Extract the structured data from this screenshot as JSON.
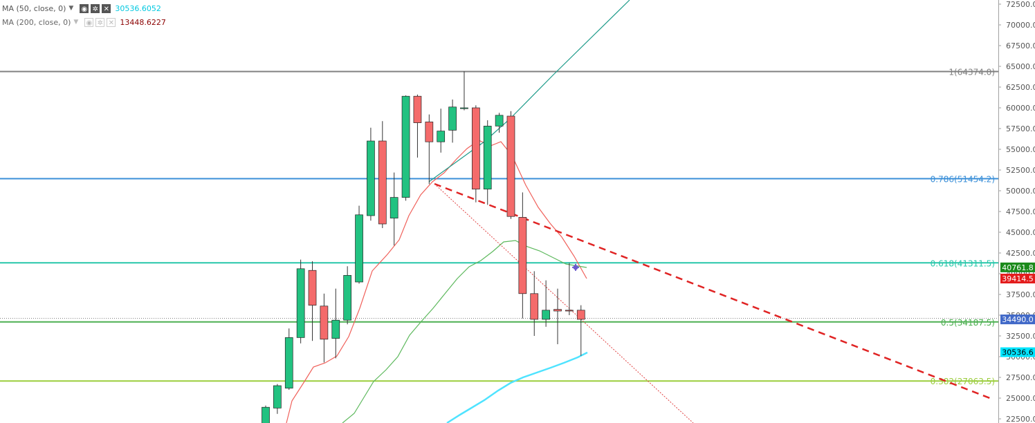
{
  "legend": {
    "ma50": {
      "label": "MA (50, close, 0)",
      "value": "30536.6052",
      "value_color": "#00c8e0"
    },
    "ma200": {
      "label": "MA (200, close, 0)",
      "value": "13448.6227",
      "value_color": "#8b0000"
    },
    "icons": [
      "eye-icon",
      "gear-icon",
      "close-icon",
      "chevron-down-icon"
    ]
  },
  "chart_data": {
    "type": "candlestick",
    "ylim": [
      22000,
      73500
    ],
    "y_ticks": [
      "22500.0",
      "25000.0",
      "27500.0",
      "30000.0",
      "32500.0",
      "35000.0",
      "37500.0",
      "40000.0",
      "42500.0",
      "45000.0",
      "47500.0",
      "50000.0",
      "52500.0",
      "55000.0",
      "57500.0",
      "60000.0",
      "62500.0",
      "65000.0",
      "67500.0",
      "70000.0",
      "72500.0"
    ],
    "candles": [
      {
        "o": 21600,
        "h": 24100,
        "l": 21000,
        "c": 23900
      },
      {
        "o": 23800,
        "h": 26700,
        "l": 23100,
        "c": 26500
      },
      {
        "o": 26200,
        "h": 33400,
        "l": 26000,
        "c": 32300
      },
      {
        "o": 32300,
        "h": 41700,
        "l": 31600,
        "c": 40600
      },
      {
        "o": 40400,
        "h": 41500,
        "l": 31900,
        "c": 36200
      },
      {
        "o": 36100,
        "h": 37600,
        "l": 29300,
        "c": 32100
      },
      {
        "o": 32200,
        "h": 38200,
        "l": 29800,
        "c": 34400
      },
      {
        "o": 34400,
        "h": 40900,
        "l": 33900,
        "c": 39800
      },
      {
        "o": 39000,
        "h": 48200,
        "l": 38800,
        "c": 47100
      },
      {
        "o": 47000,
        "h": 57600,
        "l": 46400,
        "c": 56000
      },
      {
        "o": 56000,
        "h": 58400,
        "l": 45500,
        "c": 46000
      },
      {
        "o": 46700,
        "h": 52200,
        "l": 43400,
        "c": 49200
      },
      {
        "o": 49200,
        "h": 61500,
        "l": 48800,
        "c": 61400
      },
      {
        "o": 61400,
        "h": 61600,
        "l": 54000,
        "c": 58200
      },
      {
        "o": 58300,
        "h": 59200,
        "l": 50800,
        "c": 55900
      },
      {
        "o": 55900,
        "h": 59900,
        "l": 54600,
        "c": 57200
      },
      {
        "o": 57300,
        "h": 61000,
        "l": 55800,
        "c": 60100
      },
      {
        "o": 59900,
        "h": 64400,
        "l": 59700,
        "c": 60000
      },
      {
        "o": 60000,
        "h": 60300,
        "l": 48600,
        "c": 50200
      },
      {
        "o": 50200,
        "h": 58500,
        "l": 48300,
        "c": 57800
      },
      {
        "o": 57800,
        "h": 59400,
        "l": 57000,
        "c": 59100
      },
      {
        "o": 59000,
        "h": 59600,
        "l": 46600,
        "c": 46900
      },
      {
        "o": 46800,
        "h": 49800,
        "l": 34600,
        "c": 37600
      },
      {
        "o": 37600,
        "h": 40300,
        "l": 32500,
        "c": 34500
      },
      {
        "o": 34500,
        "h": 39200,
        "l": 33600,
        "c": 35600
      },
      {
        "o": 35700,
        "h": 38200,
        "l": 31500,
        "c": 35500
      },
      {
        "o": 35600,
        "h": 41300,
        "l": 35000,
        "c": 35500
      },
      {
        "o": 35600,
        "h": 36200,
        "l": 30100,
        "c": 34500
      }
    ],
    "fib_levels": [
      {
        "label": "1(64374.0)",
        "value": 64374.0,
        "color": "#808080"
      },
      {
        "label": "0.786(51454.2)",
        "value": 51454.2,
        "color": "#3a8fd8"
      },
      {
        "label": "0.618(41311.5)",
        "value": 41311.5,
        "color": "#26c6a9"
      },
      {
        "label": "0.5(34187.5)",
        "value": 34187.5,
        "color": "#4caf50"
      },
      {
        "label": "0.382(27063.5)",
        "value": 27063.5,
        "color": "#9bcd3c"
      }
    ],
    "price_tags": [
      {
        "label": "40761.8",
        "value": 40761.8,
        "color": "#1b8a1b"
      },
      {
        "label": "39414.5",
        "value": 39414.5,
        "color": "#e31c1c"
      },
      {
        "label": "34490.0",
        "value": 34490.0,
        "color": "#4169c8"
      },
      {
        "label": "30536.6",
        "value": 30536.6,
        "color": "#00e5ff"
      }
    ],
    "last_price": 34490.0,
    "grid": false,
    "colors": {
      "up": "#22c281",
      "down": "#f46b6b"
    }
  }
}
